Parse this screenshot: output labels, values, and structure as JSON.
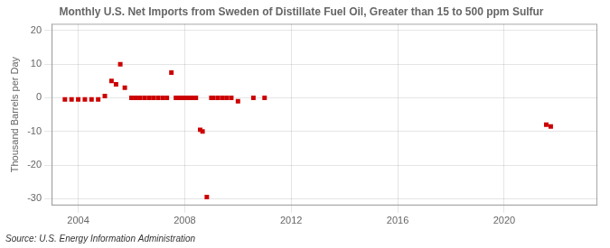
{
  "chart_data": {
    "type": "scatter",
    "title": "Monthly U.S. Net Imports from Sweden of Distillate Fuel Oil, Greater than 15 to 500 ppm Sulfur",
    "ylabel": "Thousand Barrels per Day",
    "annotation": "Source: U.S. Energy Information Administration",
    "color": "#cc0000",
    "marker": "square",
    "x": [
      2003.5,
      2003.75,
      2004.0,
      2004.25,
      2004.5,
      2004.75,
      2005.0,
      2005.25,
      2005.42,
      2005.58,
      2005.75,
      2006.0,
      2006.17,
      2006.33,
      2006.5,
      2006.67,
      2006.83,
      2007.0,
      2007.17,
      2007.33,
      2007.5,
      2007.67,
      2007.83,
      2007.92,
      2008.0,
      2008.08,
      2008.17,
      2008.25,
      2008.33,
      2008.42,
      2008.58,
      2008.67,
      2008.83,
      2009.0,
      2009.08,
      2009.25,
      2009.42,
      2009.58,
      2009.75,
      2010.0,
      2010.58,
      2011.0,
      2021.58,
      2021.75
    ],
    "values": [
      -0.5,
      -0.5,
      -0.5,
      -0.5,
      -0.5,
      -0.5,
      0.5,
      5,
      4,
      10,
      3,
      0,
      0,
      0,
      0,
      0,
      0,
      0,
      0,
      0,
      7.5,
      0,
      0,
      0,
      0,
      0,
      0,
      0,
      0,
      0,
      -9.5,
      -10,
      -29.5,
      0,
      0,
      0,
      0,
      0,
      0,
      -1,
      0,
      0,
      -8,
      -8.5
    ],
    "xlim": [
      2003.0,
      2023.5
    ],
    "ylim": [
      -32,
      22
    ],
    "xticks": [
      2004,
      2008,
      2012,
      2016,
      2020
    ],
    "yticks": [
      -30,
      -20,
      -10,
      0,
      10,
      20
    ],
    "grid": true
  }
}
